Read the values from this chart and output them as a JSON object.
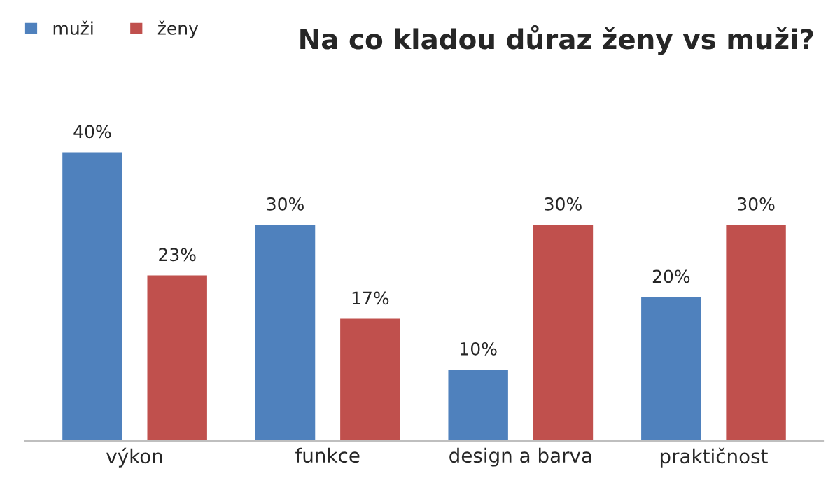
{
  "chart_data": {
    "type": "bar",
    "title": "Na co kladou důraz ženy vs muži?",
    "categories": [
      "výkon",
      "funkce",
      "design a barva",
      "praktičnost"
    ],
    "series": [
      {
        "name": "muži",
        "color": "#4f81bd",
        "values": [
          40,
          30,
          10,
          20
        ],
        "value_labels": [
          "40%",
          "30%",
          "10%",
          "20%"
        ]
      },
      {
        "name": "ženy",
        "color": "#c0504d",
        "values": [
          23,
          17,
          30,
          30
        ],
        "value_labels": [
          "23%",
          "17%",
          "30%",
          "30%"
        ]
      }
    ],
    "legend": "top left",
    "grid": false
  }
}
